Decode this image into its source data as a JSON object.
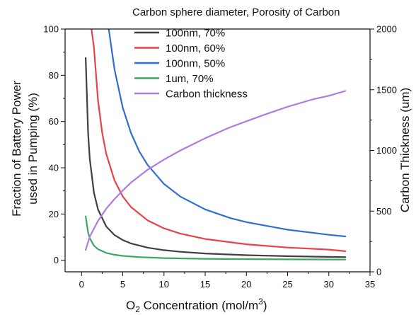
{
  "chart_data": {
    "type": "line",
    "xlabel_main": "O",
    "xlabel_sub": "2",
    "xlabel_rest": " Concentration (mol/m",
    "xlabel_sup": "3",
    "xlabel_end": ")",
    "ylabel_line1": "Fraction of Battery Power",
    "ylabel_line2": "used in Pumping (%)",
    "y2label": "Carbon Thickness (um)",
    "legend_title": "Carbon sphere diameter, Porosity of Carbon",
    "xlim": [
      -2,
      35
    ],
    "ylim": [
      -5,
      100
    ],
    "y2lim": [
      0,
      2000
    ],
    "xticks": [
      0,
      5,
      10,
      15,
      20,
      25,
      30,
      35
    ],
    "yticks": [
      0,
      20,
      40,
      60,
      80,
      100
    ],
    "y2ticks": [
      0,
      500,
      1000,
      1500,
      2000
    ],
    "series": [
      {
        "name": "100nm, 70%",
        "color": "#404040",
        "axis": "left",
        "x": [
          0.5,
          0.8,
          1.0,
          1.5,
          2,
          3,
          4,
          5,
          6,
          8,
          10,
          12,
          15,
          20,
          25,
          30,
          32
        ],
        "values": [
          87.5,
          54.7,
          43.8,
          29.2,
          21.9,
          14.6,
          10.9,
          8.75,
          7.29,
          5.47,
          4.38,
          3.65,
          2.92,
          2.19,
          1.75,
          1.46,
          1.37
        ]
      },
      {
        "name": "100nm, 60%",
        "color": "#e8424a",
        "axis": "left",
        "x": [
          1.2,
          1.5,
          2,
          2.5,
          3,
          4,
          5,
          6,
          8,
          10,
          12,
          15,
          20,
          25,
          30,
          32
        ],
        "values": [
          100,
          92,
          69,
          55.2,
          46,
          34.5,
          27.6,
          23,
          17.3,
          13.8,
          11.5,
          9.2,
          6.9,
          5.5,
          4.6,
          3.9
        ]
      },
      {
        "name": "100nm, 50%",
        "color": "#2f6fd1",
        "axis": "left",
        "x": [
          3.3,
          4,
          5,
          6,
          7,
          8,
          10,
          12,
          15,
          18,
          20,
          25,
          30,
          32
        ],
        "values": [
          100,
          82.5,
          66,
          55,
          47.1,
          41.3,
          33,
          27.5,
          22,
          18.3,
          16.5,
          13.2,
          11,
          10.3
        ]
      },
      {
        "name": "1um, 70%",
        "color": "#3aa860",
        "axis": "left",
        "x": [
          0.5,
          0.8,
          1.0,
          1.5,
          2,
          3,
          4,
          5,
          7,
          10,
          15,
          20,
          25,
          30,
          32
        ],
        "values": [
          19,
          11.9,
          9.5,
          6.3,
          4.75,
          3.17,
          2.38,
          1.9,
          1.36,
          0.95,
          0.63,
          0.48,
          0.38,
          0.32,
          0.3
        ]
      },
      {
        "name": "Carbon thickness",
        "color": "#b07ae0",
        "axis": "right",
        "x": [
          0.5,
          1,
          2,
          3,
          4,
          5,
          6,
          8,
          10,
          12,
          15,
          18,
          20,
          22,
          25,
          28,
          30,
          32
        ],
        "values": [
          180,
          290,
          420,
          520,
          600,
          670,
          735,
          840,
          925,
          1000,
          1100,
          1190,
          1240,
          1290,
          1360,
          1420,
          1450,
          1490
        ]
      }
    ]
  }
}
